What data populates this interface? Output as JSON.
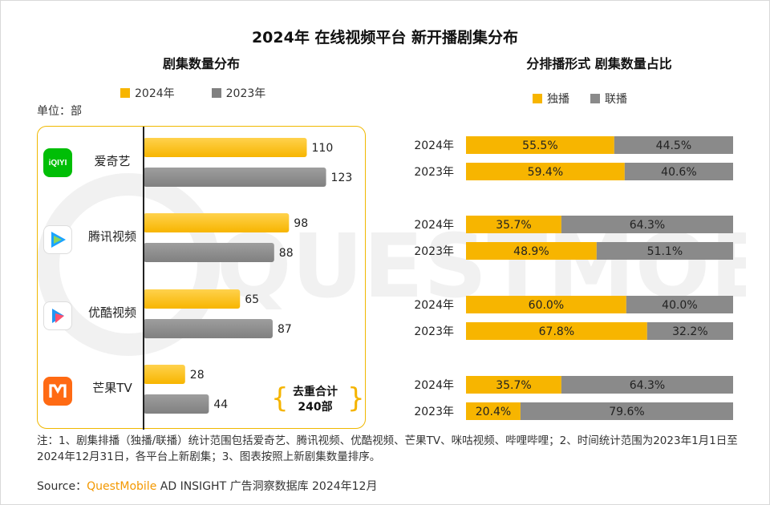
{
  "title": "2024年 在线视频平台 新开播剧集分布",
  "watermark_text": "QUESTMOBILE",
  "left_chart": {
    "subtitle": "剧集数量分布",
    "unit": "单位：部",
    "legend": [
      "2024年",
      "2023年"
    ],
    "total_label": [
      "去重合计",
      "240部"
    ]
  },
  "right_chart": {
    "subtitle": "分排播形式 剧集数量占比",
    "legend": [
      "独播",
      "联播"
    ]
  },
  "colors": {
    "y2024": "#f7b500",
    "y2023": "#808080",
    "exclusive": "#f7b500",
    "syndicated": "#8a8a8a",
    "accent_border": "#f0b800"
  },
  "chart_data": [
    {
      "type": "bar",
      "orientation": "horizontal",
      "title": "剧集数量分布",
      "unit": "部",
      "categories": [
        "爱奇艺",
        "腾讯视频",
        "优酷视频",
        "芒果TV"
      ],
      "series": [
        {
          "name": "2024年",
          "values": [
            110,
            98,
            65,
            28
          ]
        },
        {
          "name": "2023年",
          "values": [
            123,
            88,
            87,
            44
          ]
        }
      ],
      "xlim": [
        0,
        130
      ],
      "grid": false
    },
    {
      "type": "bar",
      "orientation": "horizontal",
      "stacked": true,
      "percent": true,
      "title": "分排播形式 剧集数量占比",
      "groups": [
        {
          "platform": "爱奇艺",
          "rows": [
            {
              "label": "2024年",
              "exclusive": 55.5,
              "syndicated": 44.5
            },
            {
              "label": "2023年",
              "exclusive": 59.4,
              "syndicated": 40.6
            }
          ]
        },
        {
          "platform": "腾讯视频",
          "rows": [
            {
              "label": "2024年",
              "exclusive": 35.7,
              "syndicated": 64.3
            },
            {
              "label": "2023年",
              "exclusive": 48.9,
              "syndicated": 51.1
            }
          ]
        },
        {
          "platform": "优酷视频",
          "rows": [
            {
              "label": "2024年",
              "exclusive": 60.0,
              "syndicated": 40.0
            },
            {
              "label": "2023年",
              "exclusive": 67.8,
              "syndicated": 32.2
            }
          ]
        },
        {
          "platform": "芒果TV",
          "rows": [
            {
              "label": "2024年",
              "exclusive": 35.7,
              "syndicated": 64.3
            },
            {
              "label": "2023年",
              "exclusive": 20.4,
              "syndicated": 79.6
            }
          ]
        }
      ],
      "series_names": [
        "独播",
        "联播"
      ],
      "xlim": [
        0,
        100
      ]
    }
  ],
  "logos": [
    {
      "name": "iqiyi",
      "text": "iQIYI",
      "bg": "#00be06",
      "fg": "#ffffff"
    },
    {
      "name": "tencent-video",
      "text": "",
      "bg": "#ffffff",
      "fg": "#1aa3ff"
    },
    {
      "name": "youku",
      "text": "",
      "bg": "#ffffff",
      "fg": "#2196f3"
    },
    {
      "name": "mango-tv",
      "text": "",
      "bg": "#ff6a13",
      "fg": "#ffffff"
    }
  ],
  "note": "注：1、剧集排播（独播/联播）统计范围包括爱奇艺、腾讯视频、优酷视频、芒果TV、咪咕视频、哔哩哔哩；2、时间统计范围为2023年1月1日至2024年12月31日，各平台上新剧集；3、图表按照上新剧集数量排序。",
  "source": {
    "prefix": "Source：",
    "brand": "QuestMobile",
    "rest": " AD INSIGHT 广告洞察数据库 2024年12月"
  }
}
